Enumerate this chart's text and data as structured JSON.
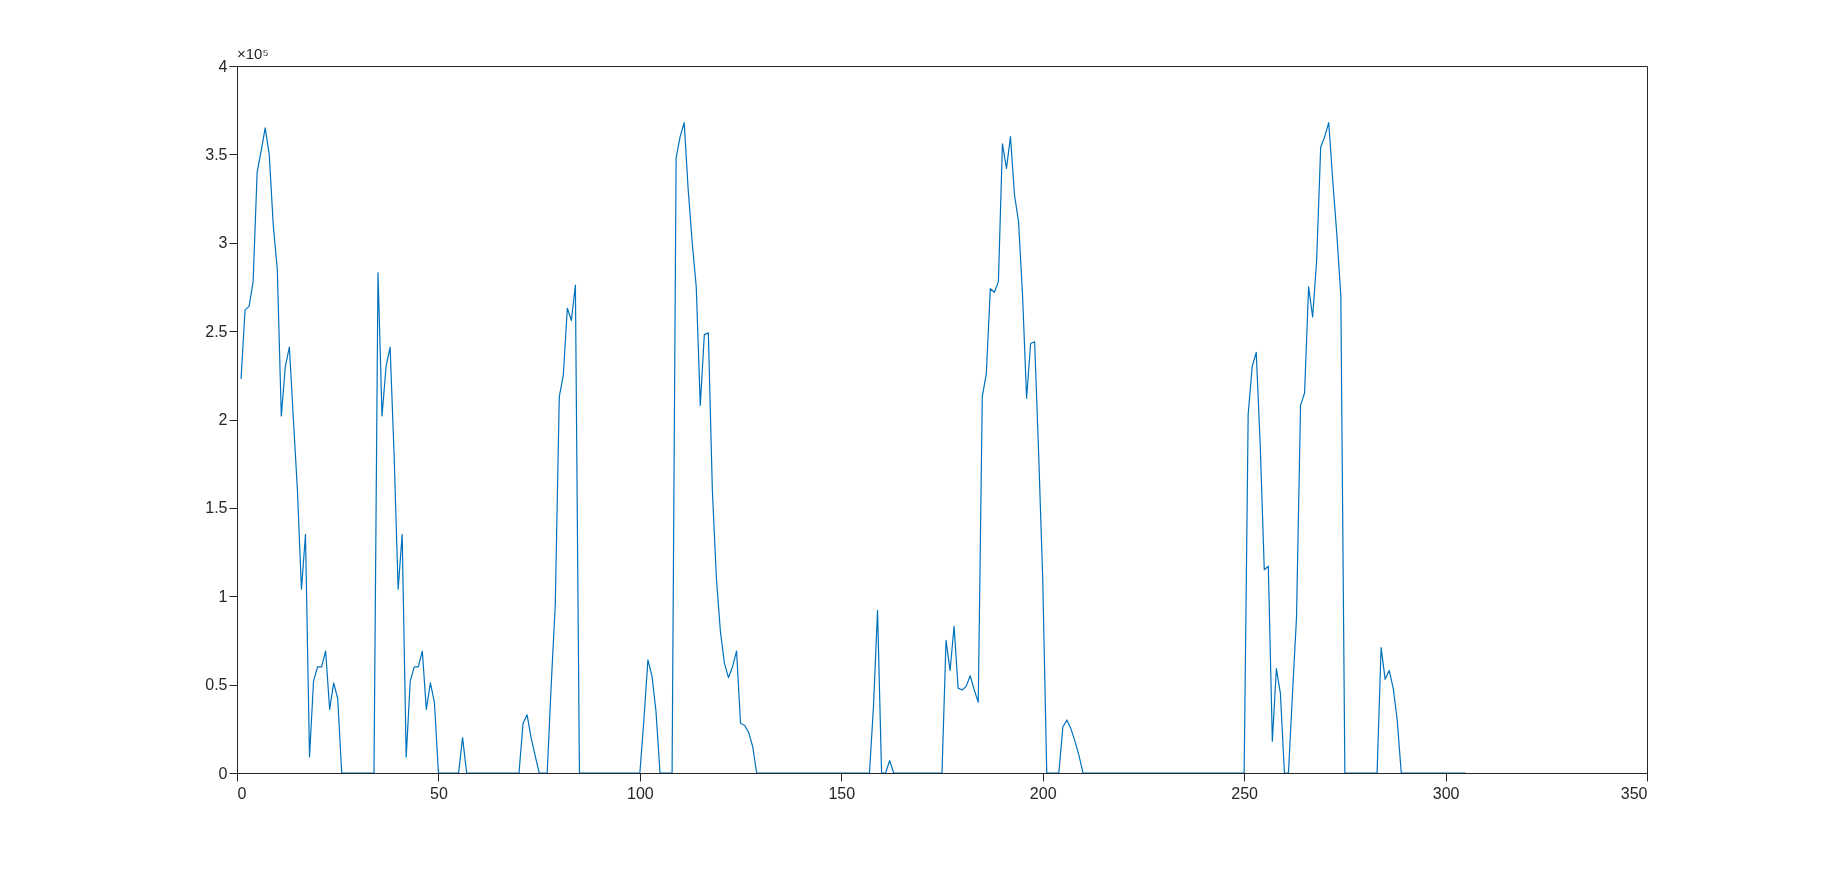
{
  "chart_data": {
    "type": "line",
    "annotations": [
      "×10⁵"
    ],
    "xlim": [
      0,
      350
    ],
    "xticks": [
      0,
      50,
      100,
      150,
      200,
      250,
      300,
      350
    ],
    "ylim": [
      0,
      4
    ],
    "yticks": [
      0,
      0.5,
      1,
      1.5,
      2,
      2.5,
      3,
      3.5,
      4
    ],
    "grid": false,
    "series": [
      {
        "color": "#0072bd",
        "x": [
          1,
          2,
          3,
          4,
          5,
          6,
          7,
          8,
          9,
          10,
          11,
          12,
          13,
          14,
          15,
          16,
          17,
          18,
          19,
          20,
          21,
          22,
          23,
          24,
          25,
          26,
          34,
          35,
          36,
          37,
          38,
          39,
          40,
          41,
          42,
          43,
          44,
          45,
          46,
          47,
          48,
          49,
          50,
          55,
          56,
          57,
          70,
          71,
          72,
          73,
          74,
          75,
          77,
          78,
          79,
          80,
          81,
          82,
          83,
          84,
          85,
          100,
          101,
          102,
          103,
          104,
          105,
          108,
          109,
          110,
          111,
          112,
          113,
          114,
          115,
          116,
          117,
          118,
          119,
          120,
          121,
          122,
          123,
          124,
          125,
          126,
          127,
          128,
          129,
          157,
          158,
          159,
          160,
          161,
          162,
          163,
          175,
          176,
          177,
          178,
          179,
          180,
          181,
          182,
          183,
          184,
          185,
          186,
          187,
          188,
          189,
          190,
          191,
          192,
          193,
          194,
          195,
          196,
          197,
          198,
          199,
          200,
          201,
          204,
          205,
          206,
          207,
          208,
          209,
          210,
          250,
          251,
          252,
          253,
          254,
          255,
          256,
          257,
          258,
          259,
          260,
          261,
          262,
          263,
          264,
          265,
          266,
          267,
          268,
          269,
          270,
          271,
          272,
          273,
          274,
          275,
          283,
          284,
          285,
          286,
          287,
          288,
          289,
          305
        ],
        "values": [
          2.23,
          2.62,
          2.64,
          2.78,
          3.4,
          3.52,
          3.65,
          3.5,
          3.1,
          2.85,
          2.02,
          2.3,
          2.41,
          2.0,
          1.6,
          1.04,
          1.35,
          0.09,
          0.52,
          0.6,
          0.6,
          0.69,
          0.36,
          0.51,
          0.42,
          0,
          0,
          2.83,
          2.02,
          2.3,
          2.41,
          1.8,
          1.04,
          1.35,
          0.09,
          0.52,
          0.6,
          0.6,
          0.69,
          0.36,
          0.51,
          0.4,
          0,
          0,
          0.2,
          0,
          0,
          0.28,
          0.33,
          0.2,
          0.1,
          0,
          0,
          0.5,
          0.95,
          2.13,
          2.25,
          2.63,
          2.56,
          2.76,
          0,
          0,
          0.3,
          0.64,
          0.55,
          0.35,
          0,
          0,
          3.48,
          3.6,
          3.68,
          3.3,
          3.0,
          2.75,
          2.08,
          2.48,
          2.49,
          1.6,
          1.1,
          0.8,
          0.62,
          0.54,
          0.6,
          0.69,
          0.28,
          0.27,
          0.23,
          0.15,
          0,
          0,
          0.38,
          0.92,
          0,
          0,
          0.07,
          0,
          0,
          0.75,
          0.58,
          0.83,
          0.48,
          0.47,
          0.49,
          0.55,
          0.47,
          0.4,
          2.13,
          2.26,
          2.74,
          2.72,
          2.78,
          3.56,
          3.42,
          3.6,
          3.27,
          3.12,
          2.7,
          2.12,
          2.43,
          2.44,
          1.8,
          1.1,
          0,
          0,
          0.26,
          0.3,
          0.25,
          0.18,
          0.1,
          0,
          0,
          2.03,
          2.3,
          2.38,
          1.85,
          1.15,
          1.17,
          0.18,
          0.59,
          0.45,
          0,
          0,
          0.45,
          0.88,
          2.08,
          2.15,
          2.75,
          2.58,
          2.9,
          3.54,
          3.6,
          3.68,
          3.35,
          3.05,
          2.7,
          0,
          0,
          0.71,
          0.53,
          0.58,
          0.48,
          0.3,
          0,
          0
        ]
      }
    ]
  }
}
